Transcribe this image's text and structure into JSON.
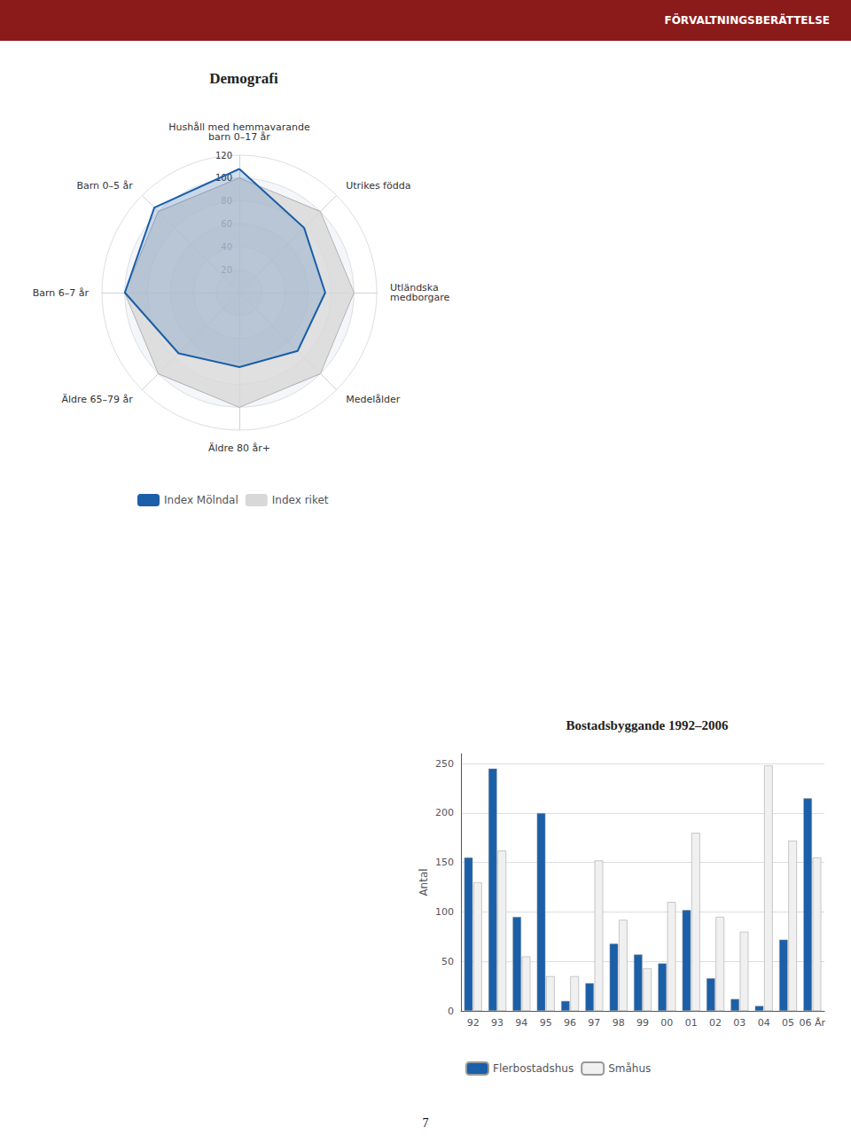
{
  "chart_data": [
    {
      "type": "radar",
      "title": "Demografi",
      "categories": [
        "Hushåll med hemmavarande\nbarn 0–17 år",
        "Barn 0–5 år",
        "Barn 6–7 år",
        "Äldre 65–79 år",
        "Äldre 80 år+",
        "Medelålder",
        "Utländska\nmedborgare",
        "Utrikes födda"
      ],
      "series": [
        {
          "name": "Index Mölndal",
          "color": "#1a5fa8",
          "values": [
            108,
            105,
            100,
            75,
            65,
            72,
            75,
            80
          ]
        },
        {
          "name": "Index riket",
          "color": "#d8d8d8",
          "values": [
            100,
            100,
            100,
            100,
            100,
            100,
            100,
            100
          ]
        }
      ],
      "ylim": [
        0,
        120
      ],
      "yticks": [
        20,
        40,
        60,
        80,
        100,
        120
      ],
      "grid": true,
      "legend": "lower center",
      "annotations": [
        "FÖRVALTNINGSBERÄTTELSE",
        "7"
      ]
    },
    {
      "type": "bar",
      "title": "Bostadsbyggande 1992–2006",
      "ylabel": "Antal",
      "categories": [
        "92",
        "93",
        "94",
        "95",
        "96",
        "97",
        "98",
        "99",
        "00",
        "01",
        "02",
        "03",
        "04",
        "05",
        "06 År"
      ],
      "series": [
        {
          "name": "Flerbostadshus",
          "color": "#1a5fa8",
          "values": [
            155,
            245,
            95,
            200,
            10,
            28,
            68,
            57,
            48,
            102,
            33,
            12,
            5,
            72,
            215
          ]
        },
        {
          "name": "Småhus",
          "color": "#f0f0f0",
          "values": [
            130,
            162,
            55,
            35,
            35,
            152,
            92,
            43,
            110,
            180,
            95,
            80,
            248,
            172,
            155
          ]
        }
      ],
      "ylim": [
        0,
        260
      ],
      "yticks": [
        0,
        50,
        100,
        150,
        200,
        250
      ],
      "grid": true,
      "legend": "lower left"
    }
  ]
}
